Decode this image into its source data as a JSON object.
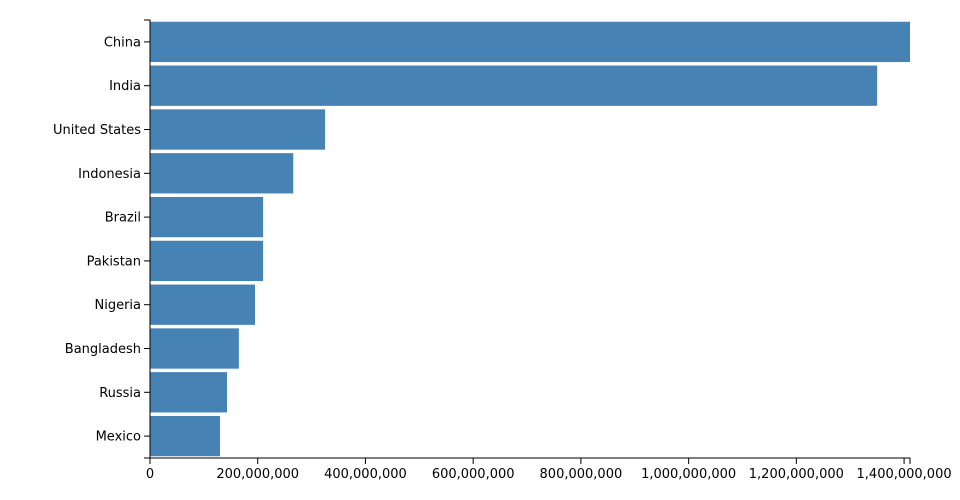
{
  "chart_data": {
    "type": "bar",
    "orientation": "horizontal",
    "categories": [
      "China",
      "India",
      "United States",
      "Indonesia",
      "Brazil",
      "Pakistan",
      "Nigeria",
      "Bangladesh",
      "Russia",
      "Mexico"
    ],
    "values": [
      1411000000,
      1350000000,
      325000000,
      266000000,
      210000000,
      210000000,
      195000000,
      165000000,
      143000000,
      130000000
    ],
    "color": "#4682b4",
    "xlim": [
      0,
      1411000000
    ],
    "xticks": [
      0,
      {
        "value": 200000000,
        "label": "200,000,000"
      },
      {
        "value": 400000000,
        "label": "400,000,000"
      },
      {
        "value": 600000000,
        "label": "600,000,000"
      },
      {
        "value": 800000000,
        "label": "800,000,000"
      },
      {
        "value": 1000000000,
        "label": "1,000,000,000"
      },
      {
        "value": 1200000000,
        "label": "1,200,000,000"
      },
      {
        "value": 1400000000,
        "label": "1,400,000,000"
      }
    ],
    "grid": false
  }
}
